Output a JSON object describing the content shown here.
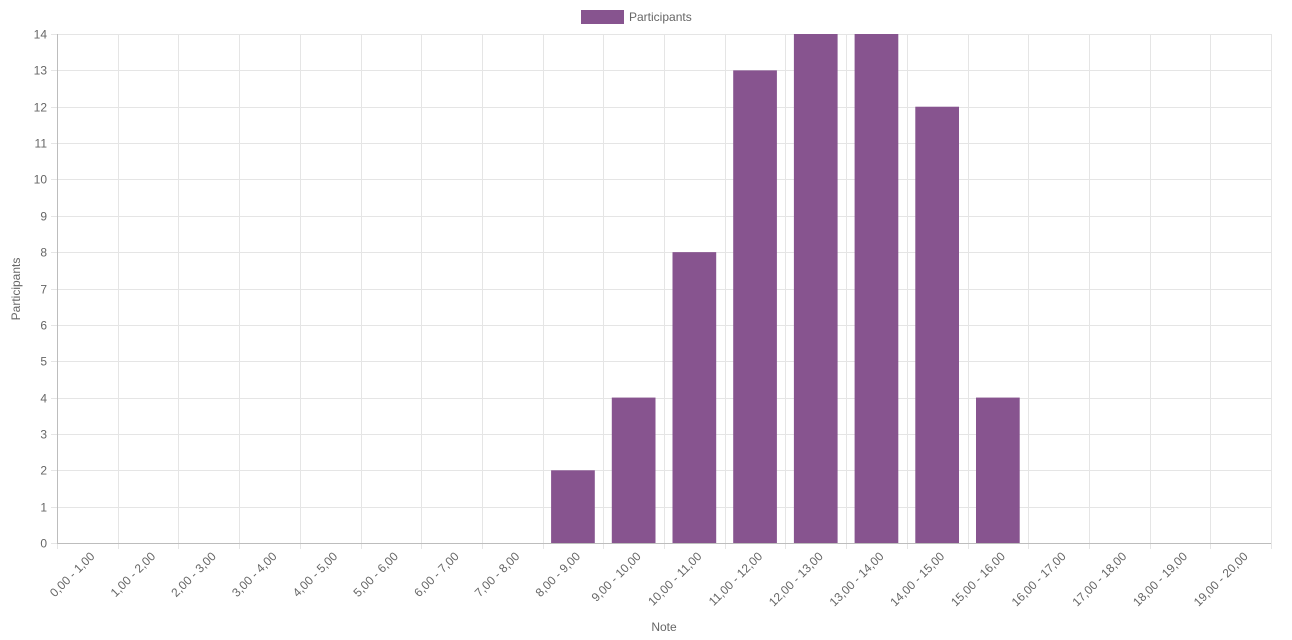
{
  "chart_data": {
    "type": "bar",
    "categories": [
      "0,00 - 1,00",
      "1,00 - 2,00",
      "2,00 - 3,00",
      "3,00 - 4,00",
      "4,00 - 5,00",
      "5,00 - 6,00",
      "6,00 - 7,00",
      "7,00 - 8,00",
      "8,00 - 9,00",
      "9,00 - 10,00",
      "10,00 - 11,00",
      "11,00 - 12,00",
      "12,00 - 13,00",
      "13,00 - 14,00",
      "14,00 - 15,00",
      "15,00 - 16,00",
      "16,00 - 17,00",
      "17,00 - 18,00",
      "18,00 - 19,00",
      "19,00 - 20,00"
    ],
    "series": [
      {
        "name": "Participants",
        "values": [
          0,
          0,
          0,
          0,
          0,
          0,
          0,
          0,
          2,
          4,
          8,
          13,
          14,
          14,
          12,
          4,
          0,
          0,
          0,
          0
        ],
        "color": "#87548f"
      }
    ],
    "xlabel": "Note",
    "ylabel": "Participants",
    "ylim": [
      0,
      14
    ],
    "yticks": [
      0,
      1,
      2,
      3,
      4,
      5,
      6,
      7,
      8,
      9,
      10,
      11,
      12,
      13,
      14
    ],
    "grid": true,
    "legend_position": "top-center"
  }
}
